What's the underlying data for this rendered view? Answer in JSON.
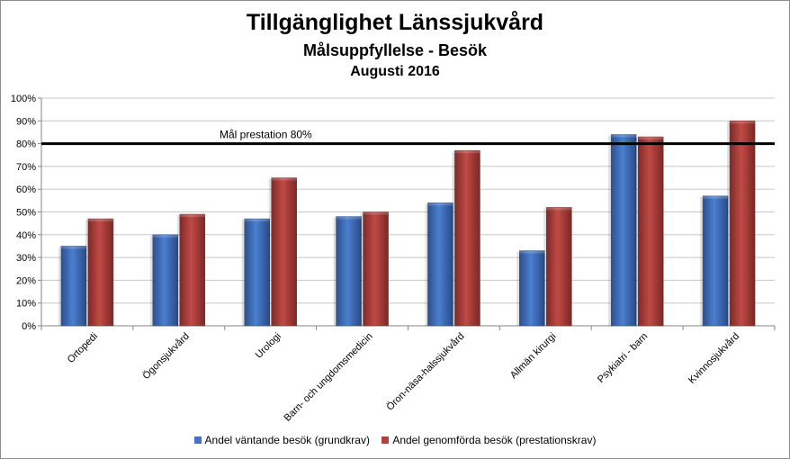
{
  "chart_data": {
    "type": "bar",
    "title": "Tillgänglighet Länssjukvård",
    "subtitle": "Målsuppfyllelse - Besök",
    "period": "Augusti 2016",
    "categories": [
      "Ortopedi",
      "Ögonsjukvård",
      "Urologi",
      "Barn- och ungdomsmedicin",
      "Öron-näsa-halssjukvård",
      "Allmän kirurgi",
      "Psykiatri - barn",
      "Kvinnosjukvård"
    ],
    "series": [
      {
        "name": "Andel väntande besök (grundkrav)",
        "color": "#4472c4",
        "values": [
          35,
          40,
          47,
          48,
          54,
          33,
          84,
          57
        ]
      },
      {
        "name": "Andel genomförda besök (prestationskrav)",
        "color": "#b0413e",
        "values": [
          47,
          49,
          65,
          50,
          77,
          52,
          83,
          90
        ]
      }
    ],
    "ylim": [
      0,
      100
    ],
    "yticks": [
      "0%",
      "10%",
      "20%",
      "30%",
      "40%",
      "50%",
      "60%",
      "70%",
      "80%",
      "90%",
      "100%"
    ],
    "grid": true,
    "target_line": {
      "value": 80,
      "label": "Mål prestation 80%"
    },
    "legend_position": "bottom"
  }
}
